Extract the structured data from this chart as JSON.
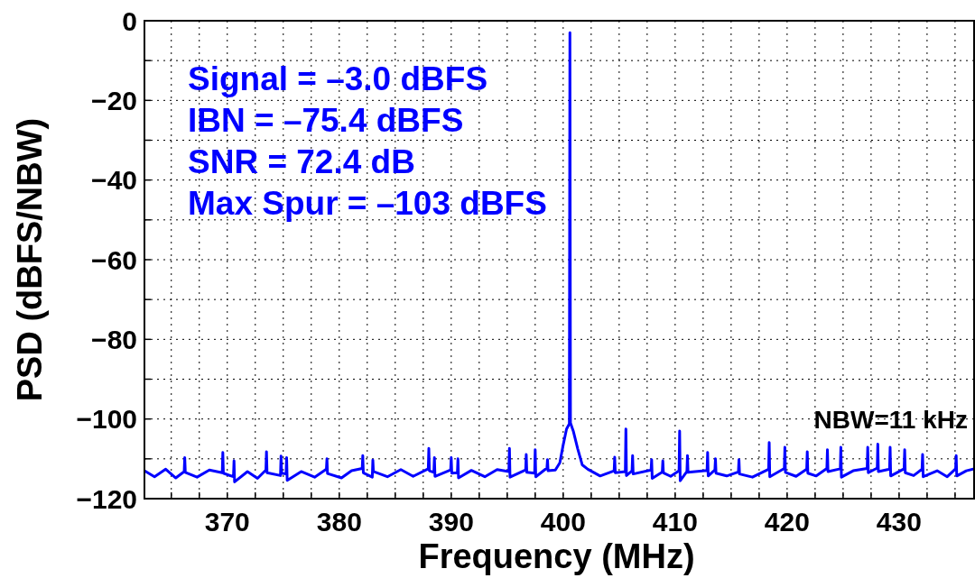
{
  "chart_data": {
    "type": "line",
    "xlabel": "Frequency (MHz)",
    "ylabel": "PSD (dBFS/NBW)",
    "xlim": [
      362.6,
      436.7
    ],
    "ylim": [
      -120,
      0
    ],
    "xticks": [
      {
        "value": 365,
        "label": null
      },
      {
        "value": 367.5,
        "label": null
      },
      370,
      {
        "value": 372.5,
        "label": null
      },
      {
        "value": 375,
        "label": null
      },
      {
        "value": 377.5,
        "label": null
      },
      380,
      {
        "value": 382.5,
        "label": null
      },
      {
        "value": 385,
        "label": null
      },
      {
        "value": 387.5,
        "label": null
      },
      390,
      {
        "value": 392.5,
        "label": null
      },
      {
        "value": 395,
        "label": null
      },
      {
        "value": 397.5,
        "label": null
      },
      400,
      {
        "value": 402.5,
        "label": null
      },
      {
        "value": 405,
        "label": null
      },
      {
        "value": 407.5,
        "label": null
      },
      410,
      {
        "value": 412.5,
        "label": null
      },
      {
        "value": 415,
        "label": null
      },
      {
        "value": 417.5,
        "label": null
      },
      420,
      {
        "value": 422.5,
        "label": null
      },
      {
        "value": 425,
        "label": null
      },
      {
        "value": 427.5,
        "label": null
      },
      430,
      {
        "value": 432.5,
        "label": null
      },
      {
        "value": 435,
        "label": null
      }
    ],
    "yticks": [
      {
        "value": -120,
        "label": "−120"
      },
      {
        "value": -110,
        "label": null
      },
      {
        "value": -100,
        "label": "−100"
      },
      {
        "value": -90,
        "label": null
      },
      {
        "value": -80,
        "label": "−80"
      },
      {
        "value": -70,
        "label": null
      },
      {
        "value": -60,
        "label": "−60"
      },
      {
        "value": -50,
        "label": null
      },
      {
        "value": -40,
        "label": "−40"
      },
      {
        "value": -30,
        "label": null
      },
      {
        "value": -20,
        "label": "−20"
      },
      {
        "value": -10,
        "label": null
      },
      0
    ],
    "grid": true,
    "marker": "none",
    "line_style": "solid",
    "annotations": [
      "Signal = –3.0 dBFS",
      "IBN = –75.4 dBFS",
      "SNR = 72.4 dB",
      "Max Spur = –103 dBFS",
      "NBW=11 kHz"
    ],
    "series": [
      {
        "color": "#0000ff",
        "x": [
          362.6,
          363.5,
          364.5,
          365.4,
          366.15,
          366.2,
          366.25,
          367.3,
          368.4,
          369.55,
          369.6,
          369.65,
          370.55,
          370.6,
          370.65,
          371.8,
          372.7,
          373.45,
          373.5,
          373.55,
          374.75,
          374.8,
          374.85,
          375.25,
          375.3,
          375.35,
          376.6,
          377.8,
          378.85,
          378.9,
          378.95,
          380.2,
          381.1,
          382.05,
          382.1,
          382.15,
          382.95,
          383,
          383.05,
          384.3,
          385.5,
          386.6,
          387.95,
          388,
          388.05,
          388.45,
          388.5,
          388.55,
          389.95,
          390,
          390.05,
          390.55,
          390.6,
          390.65,
          391.8,
          393,
          394.1,
          395.15,
          395.2,
          395.25,
          396.65,
          396.7,
          396.75,
          397.45,
          397.5,
          397.55,
          398.55,
          398.6,
          398.65,
          399.3,
          399.7,
          400,
          400.3,
          400.55,
          400.6,
          400.65,
          400.9,
          401.3,
          401.7,
          402.2,
          403.3,
          404.55,
          404.6,
          404.65,
          405.55,
          405.6,
          405.65,
          406.15,
          406.2,
          406.25,
          407.85,
          407.9,
          407.95,
          408.85,
          408.9,
          408.95,
          409.6,
          410.35,
          410.4,
          410.45,
          411.05,
          411.1,
          411.15,
          412.85,
          412.9,
          412.95,
          413.55,
          413.6,
          413.65,
          414.6,
          415.65,
          415.7,
          415.75,
          416.9,
          418.35,
          418.4,
          418.45,
          419.75,
          419.8,
          419.85,
          420.8,
          421.75,
          421.8,
          421.85,
          422.6,
          423.55,
          423.6,
          423.65,
          424.75,
          424.8,
          424.85,
          425.9,
          427.15,
          427.2,
          427.25,
          428.05,
          428.1,
          428.15,
          429.15,
          429.2,
          429.25,
          430.45,
          430.5,
          430.55,
          431.3,
          432.05,
          432.1,
          432.15,
          433.4,
          434.3,
          435.05,
          435.1,
          435.15,
          436,
          436.7
        ],
        "values": [
          -113.0,
          -114.5,
          -112.6,
          -114.8,
          -113.2,
          -109.7,
          -113.4,
          -114.6,
          -112.8,
          -113.5,
          -108.4,
          -113.6,
          -114.5,
          -110.5,
          -115.8,
          -113.2,
          -114.9,
          -112.8,
          -108.2,
          -113.5,
          -114.2,
          -109.3,
          -113.6,
          -113.8,
          -109.7,
          -115.4,
          -113.2,
          -114.6,
          -112.6,
          -110,
          -113.7,
          -114.8,
          -113.0,
          -112.4,
          -109.2,
          -113.5,
          -114.6,
          -110.3,
          -113.2,
          -114.5,
          -112.7,
          -114.4,
          -112.5,
          -107.4,
          -113,
          -113.4,
          -109.7,
          -114.4,
          -112.8,
          -109.7,
          -113.6,
          -113.5,
          -110,
          -114.8,
          -112.9,
          -114.5,
          -112.7,
          -113.2,
          -107.4,
          -114.6,
          -112.8,
          -108.9,
          -113.4,
          -113.6,
          -107.7,
          -114.5,
          -112.3,
          -110.2,
          -113,
          -112.8,
          -111,
          -106.5,
          -102.5,
          -101.2,
          -3.0,
          -101.0,
          -103,
          -107.5,
          -111.5,
          -112.6,
          -114.3,
          -113,
          -109.6,
          -113.5,
          -113.2,
          -102.5,
          -114.2,
          -113,
          -109.2,
          -113.8,
          -112.8,
          -110.2,
          -114.9,
          -113.3,
          -110.5,
          -113.5,
          -114.4,
          -113,
          -103,
          -115.5,
          -113.2,
          -109.2,
          -113.4,
          -112.9,
          -108.4,
          -114.3,
          -112.8,
          -110,
          -113.6,
          -114.3,
          -113.3,
          -110.2,
          -113.8,
          -114.6,
          -112.6,
          -105.9,
          -114.5,
          -112.4,
          -107.1,
          -113.4,
          -114.4,
          -112.6,
          -108.2,
          -113.6,
          -114.3,
          -112.4,
          -107.7,
          -113.2,
          -112.5,
          -107.1,
          -114.6,
          -113.0,
          -112.4,
          -107.1,
          -113.5,
          -112.3,
          -106.3,
          -113.2,
          -112.6,
          -107.1,
          -114.3,
          -112.5,
          -107.7,
          -113.5,
          -114.2,
          -112.6,
          -108.9,
          -114.5,
          -113.0,
          -114.5,
          -112.5,
          -109.2,
          -114.3,
          -113.0,
          -112.5
        ]
      }
    ]
  }
}
